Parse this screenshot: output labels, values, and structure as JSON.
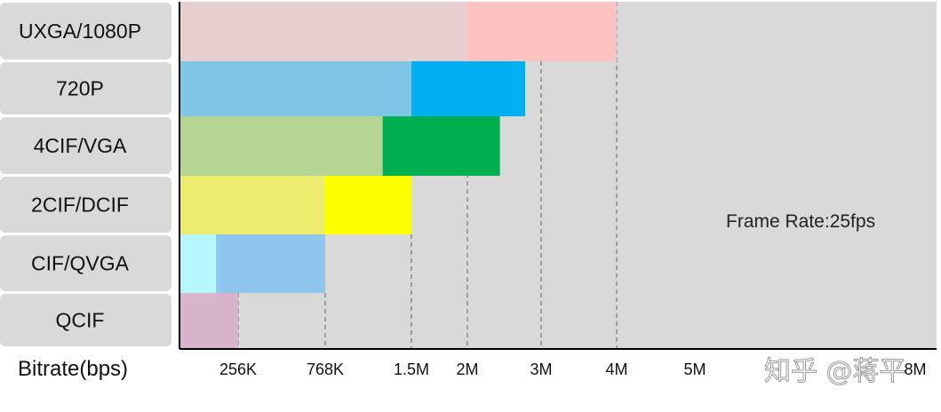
{
  "chart_data": {
    "type": "bar",
    "xlabel": "Bitrate(bps)",
    "annotation": "Frame Rate:25fps",
    "x_ticks": [
      "256K",
      "768K",
      "1.5M",
      "2M",
      "3M",
      "4M",
      "5M",
      "8M"
    ],
    "tick_values": [
      256,
      768,
      1536,
      2048,
      3072,
      4096,
      5120,
      8192
    ],
    "categories": [
      "UXGA/1080P",
      "720P",
      "4CIF/VGA",
      "2CIF/DCIF",
      "CIF/QVGA",
      "QCIF"
    ],
    "series": [
      {
        "values": [
          2048,
          1536,
          1280,
          768,
          160,
          256
        ]
      },
      {
        "values": [
          4096,
          2850,
          2500,
          1536,
          768,
          256
        ]
      }
    ],
    "colors": {
      "base": [
        "#e8cfcf",
        "#7fc5e6",
        "#b5d593",
        "#ecec6e",
        "#b5f7fb",
        "#d7b4cc"
      ],
      "upper": [
        "#ffc2c2",
        "#00b0f0",
        "#00b050",
        "#ffff00",
        "#8fc6ee",
        "#d7b4cc"
      ],
      "background": "#d9d9d9",
      "label_box": "#d9d9d9"
    },
    "grid": "dashed-vertical",
    "watermark": "知乎 @蒋平"
  }
}
